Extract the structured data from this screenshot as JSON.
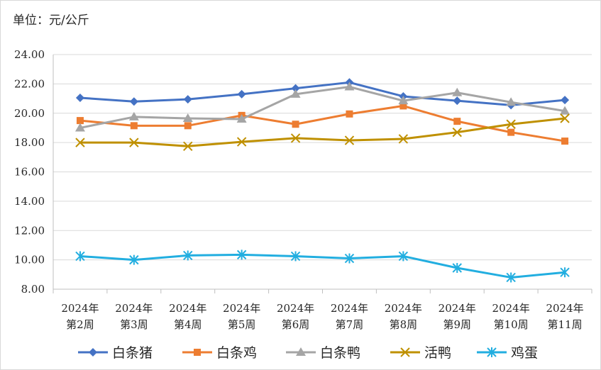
{
  "chart_data": {
    "type": "line",
    "unit_label": "单位：元/公斤",
    "categories": [
      [
        "2024年",
        "第2周"
      ],
      [
        "2024年",
        "第3周"
      ],
      [
        "2024年",
        "第4周"
      ],
      [
        "2024年",
        "第5周"
      ],
      [
        "2024年",
        "第6周"
      ],
      [
        "2024年",
        "第7周"
      ],
      [
        "2024年",
        "第8周"
      ],
      [
        "2024年",
        "第9周"
      ],
      [
        "2024年",
        "第10周"
      ],
      [
        "2024年",
        "第11周"
      ]
    ],
    "ylim": [
      8,
      24
    ],
    "yticks": [
      "8.00",
      "10.00",
      "12.00",
      "14.00",
      "16.00",
      "18.00",
      "20.00",
      "22.00",
      "24.00"
    ],
    "ytick_values": [
      8,
      10,
      12,
      14,
      16,
      18,
      20,
      22,
      24
    ],
    "grid": "horizontal",
    "legend_position": "bottom",
    "series": [
      {
        "name": "白条猪",
        "color": "#4472C4",
        "marker": "diamond",
        "values": [
          21.05,
          20.8,
          20.95,
          21.3,
          21.7,
          22.1,
          21.15,
          20.85,
          20.55,
          20.9
        ]
      },
      {
        "name": "白条鸡",
        "color": "#ED7D31",
        "marker": "square",
        "values": [
          19.5,
          19.15,
          19.15,
          19.85,
          19.25,
          19.95,
          20.5,
          19.45,
          18.7,
          18.1
        ]
      },
      {
        "name": "白条鸭",
        "color": "#A5A5A5",
        "marker": "triangle",
        "values": [
          19.0,
          19.75,
          19.65,
          19.6,
          21.3,
          21.8,
          20.85,
          21.4,
          20.75,
          20.15
        ]
      },
      {
        "name": "活鸭",
        "color": "#BF9000",
        "marker": "x",
        "values": [
          18.0,
          18.0,
          17.75,
          18.05,
          18.3,
          18.15,
          18.25,
          18.7,
          19.25,
          19.65
        ]
      },
      {
        "name": "鸡蛋",
        "color": "#22AEE0",
        "marker": "asterisk",
        "values": [
          10.25,
          10.0,
          10.3,
          10.35,
          10.25,
          10.1,
          10.25,
          9.45,
          8.8,
          9.15
        ]
      }
    ]
  }
}
